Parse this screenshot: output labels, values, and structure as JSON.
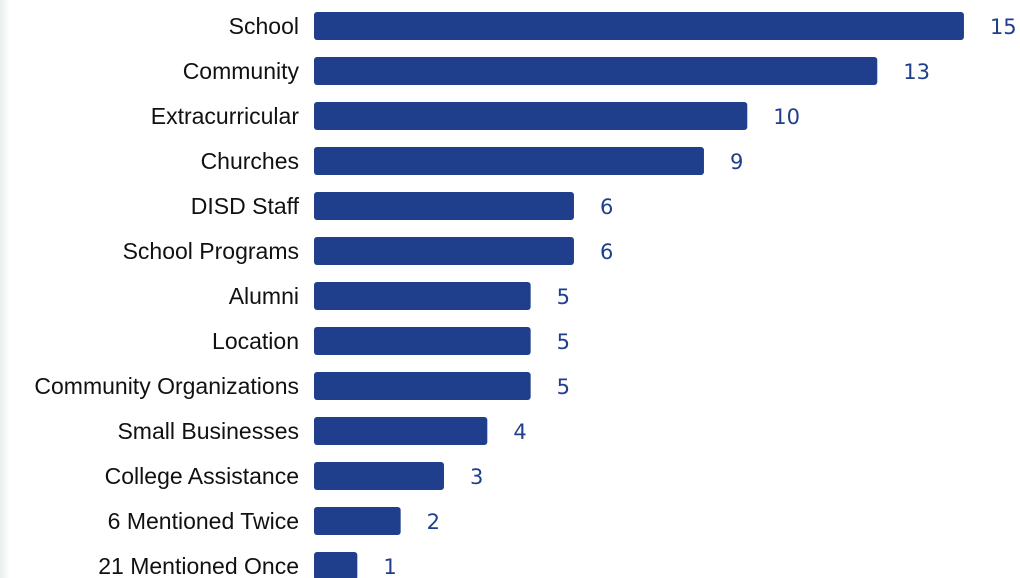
{
  "chart_data": {
    "type": "bar",
    "orientation": "horizontal",
    "categories": [
      "School",
      "Community",
      "Extracurricular",
      "Churches",
      "DISD Staff",
      "School Programs",
      "Alumni",
      "Location",
      "Community Organizations",
      "Small Businesses",
      "College Assistance",
      "6 Mentioned Twice",
      "21 Mentioned Once"
    ],
    "values": [
      15,
      13,
      10,
      9,
      6,
      6,
      5,
      5,
      5,
      4,
      3,
      2,
      1
    ],
    "xlim": [
      0,
      15
    ],
    "grid": false,
    "legend": false,
    "data_labels": true,
    "bar_color": "#1f3f8c",
    "label_color": "#1f3f8c"
  }
}
